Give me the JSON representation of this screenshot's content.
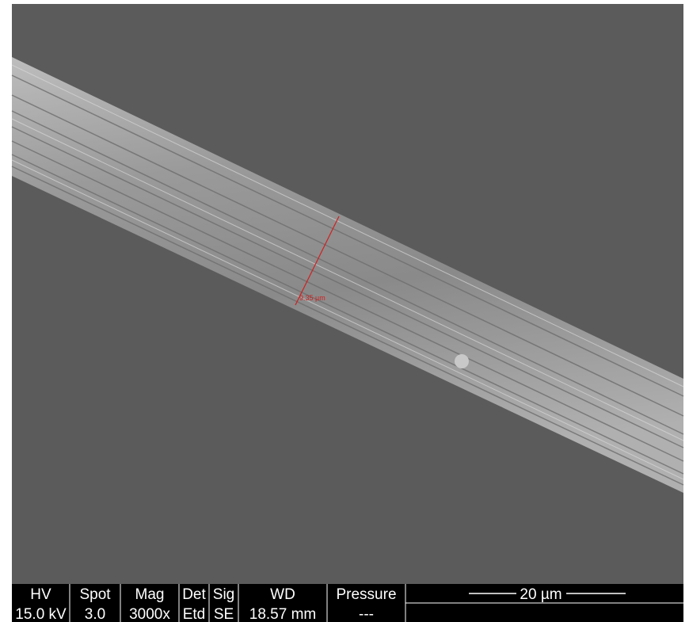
{
  "measurement": "9.35 µm",
  "info_bar": {
    "columns": [
      {
        "header": "HV",
        "value": "15.0 kV"
      },
      {
        "header": "Spot",
        "value": "3.0"
      },
      {
        "header": "Mag",
        "value": "3000x"
      },
      {
        "header": "Det",
        "value": "Etd"
      },
      {
        "header": "Sig",
        "value": "SE"
      },
      {
        "header": "WD",
        "value": "18.57 mm"
      },
      {
        "header": "Pressure",
        "value": "---"
      }
    ],
    "scale_bar": "20 µm"
  }
}
